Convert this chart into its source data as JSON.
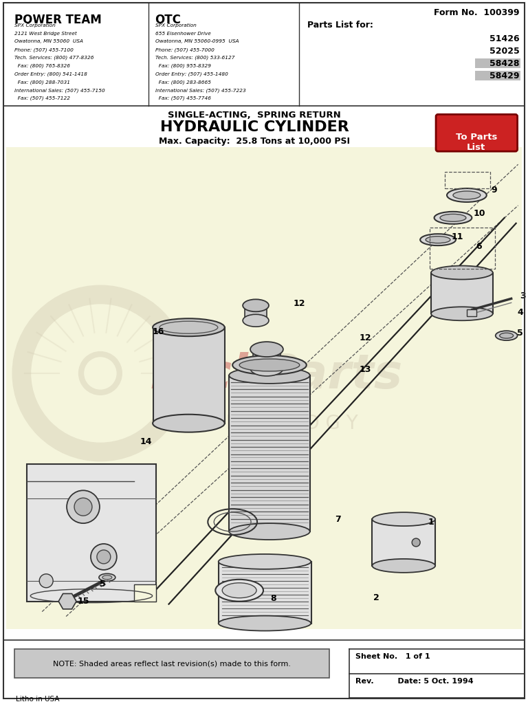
{
  "title": "HYDRAULIC CYLINDER",
  "subtitle_top": "SINGLE-ACTING,  SPRING RETURN",
  "subtitle_bottom": "Max. Capacity:  25.8 Tons at 10,000 PSI",
  "form_no": "Form No.  100399",
  "parts_list_for": "Parts List for:",
  "part_numbers": [
    "51426",
    "52025",
    "58428",
    "58429"
  ],
  "shaded_parts": [
    "58428",
    "58429"
  ],
  "to_parts_button": "To Parts\nList",
  "to_parts_color": "#cc2222",
  "left_col_title": "POWER TEAM",
  "left_col_lines": [
    "SPX Corporation",
    "2121 West Bridge Street",
    "Owatonna, MN 55060  USA",
    "Phone: (507) 455-7100",
    "Tech. Services: (800) 477-8326",
    "  Fax: (800) 765-8326",
    "Order Entry: (800) 541-1418",
    "  Fax: (800) 288-7031",
    "International Sales: (507) 455-7150",
    "  Fax: (507) 455-7122"
  ],
  "right_col_title": "OTC",
  "right_col_lines": [
    "SPX Corporation",
    "655 Eisenhower Drive",
    "Owatonna, MN 55060-0995  USA",
    "Phone: (507) 455-7000",
    "Tech. Services: (800) 533-6127",
    "  Fax: (800) 955-8329",
    "Order Entry: (507) 455-1480",
    "  Fax: (800) 283-8665",
    "International Sales: (507) 455-7223",
    "  Fax: (507) 455-7746"
  ],
  "note_text": "NOTE: Shaded areas reflect last revision(s) made to this form.",
  "sheet_no": "Sheet No.   1 of 1",
  "rev_date": "Rev.         Date: 5 Oct. 1994",
  "litho": "Litho in USA",
  "bg_color": "#ffffff",
  "diagram_bg": "#f5f5dc",
  "watermark_color": "#d0c8b0",
  "border_color": "#333333"
}
